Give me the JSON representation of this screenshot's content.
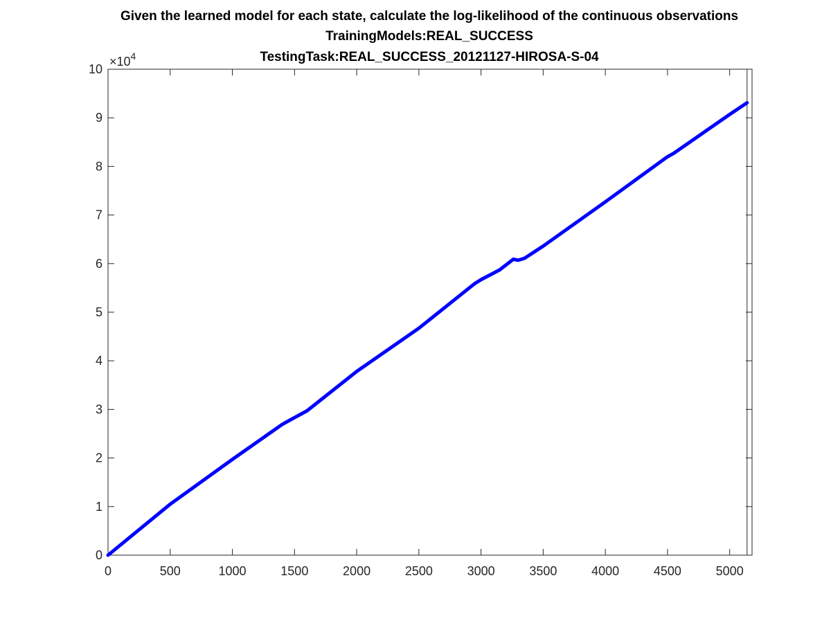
{
  "chart_data": {
    "type": "line",
    "title_lines": [
      "Given the learned model for each state, calculate the log-likelihood of the continuous observations",
      "TrainingModels:REAL_SUCCESS",
      "TestingTask:REAL_SUCCESS_20121127-HIROSA-S-04"
    ],
    "xlabel": "",
    "ylabel": "",
    "xlim": [
      0,
      5180
    ],
    "ylim": [
      0,
      100000
    ],
    "y_exponent_base": "×10",
    "y_exponent_power": "4",
    "x_ticks": [
      0,
      500,
      1000,
      1500,
      2000,
      2500,
      3000,
      3500,
      4000,
      4500,
      5000
    ],
    "y_ticks": [
      0,
      10000,
      20000,
      30000,
      40000,
      50000,
      60000,
      70000,
      80000,
      90000,
      100000
    ],
    "y_tick_labels": [
      "0",
      "1",
      "2",
      "3",
      "4",
      "5",
      "6",
      "7",
      "8",
      "9",
      "10"
    ],
    "grid": false,
    "vertical_marker_x": 5140,
    "series": [
      {
        "color": "#0000ff",
        "x": [
          0,
          500,
          1000,
          1400,
          1450,
          1600,
          2000,
          2500,
          2950,
          3000,
          3150,
          3260,
          3300,
          3350,
          3500,
          4000,
          4500,
          4550,
          5000,
          5140
        ],
        "y": [
          0,
          10500,
          19700,
          26900,
          27600,
          29700,
          37800,
          46700,
          55900,
          56700,
          58700,
          60900,
          60700,
          61100,
          63600,
          72700,
          82000,
          82700,
          90700,
          93100
        ]
      }
    ]
  }
}
